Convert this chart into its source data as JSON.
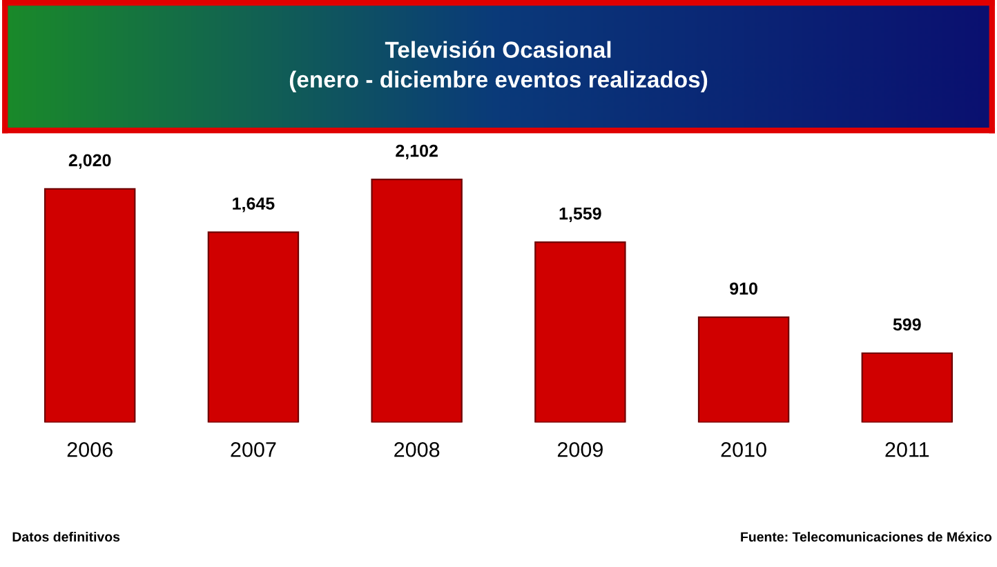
{
  "chart_data": {
    "type": "bar",
    "title": "Televisión Ocasional\n(enero - diciembre eventos realizados)",
    "categories": [
      "2006",
      "2007",
      "2008",
      "2009",
      "2010",
      "2011"
    ],
    "values": [
      2020,
      1645,
      2102,
      1559,
      910,
      599
    ],
    "color": "#d00000",
    "value_labels": [
      "2,020",
      "1,645",
      "2,102",
      "1,559",
      "910",
      "599"
    ],
    "grid": false,
    "annotations": [
      "Datos definitivos",
      "Fuente: Telecomunicaciones de México"
    ]
  }
}
